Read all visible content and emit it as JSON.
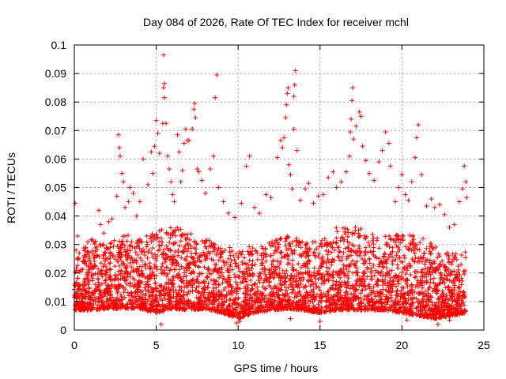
{
  "chart_data": {
    "type": "scatter",
    "title": "Day 084 of 2026, Rate Of TEC Index for receiver mchl",
    "xlabel": "GPS time / hours",
    "ylabel": "ROTI / TECUs",
    "xlim": [
      0,
      25
    ],
    "ylim": [
      0,
      0.1
    ],
    "x_ticks": [
      0,
      5,
      10,
      15,
      20,
      25
    ],
    "y_ticks": [
      0,
      0.01,
      0.02,
      0.03,
      0.04,
      0.05,
      0.06,
      0.07,
      0.08,
      0.09,
      0.1
    ],
    "x_tick_labels": [
      "0",
      "5",
      "10",
      "15",
      "20",
      "25"
    ],
    "y_tick_labels": [
      "0",
      "0.01",
      "0.02",
      "0.03",
      "0.04",
      "0.05",
      "0.06",
      "0.07",
      "0.08",
      "0.09",
      "0.1"
    ],
    "grid": true,
    "marker": "plus",
    "color": "#ff0000",
    "series": [
      {
        "points": [
          [
            0.05,
            0.0445
          ],
          [
            0.1,
            0.028
          ],
          [
            0.2,
            0.033
          ],
          [
            0.3,
            0.027
          ],
          [
            0.5,
            0.024
          ],
          [
            0.7,
            0.029
          ],
          [
            0.9,
            0.025
          ],
          [
            1.1,
            0.027
          ],
          [
            1.3,
            0.031
          ],
          [
            1.5,
            0.042
          ],
          [
            1.6,
            0.037
          ],
          [
            1.8,
            0.034
          ],
          [
            2.1,
            0.038
          ],
          [
            2.3,
            0.039
          ],
          [
            2.6,
            0.047
          ],
          [
            2.7,
            0.0685
          ],
          [
            2.75,
            0.064
          ],
          [
            2.8,
            0.061
          ],
          [
            2.9,
            0.055
          ],
          [
            3.0,
            0.052
          ],
          [
            3.1,
            0.043
          ],
          [
            3.3,
            0.045
          ],
          [
            3.4,
            0.05
          ],
          [
            3.6,
            0.048
          ],
          [
            3.8,
            0.04
          ],
          [
            4.0,
            0.045
          ],
          [
            4.2,
            0.06
          ],
          [
            4.5,
            0.051
          ],
          [
            4.7,
            0.0625
          ],
          [
            4.8,
            0.055
          ],
          [
            4.9,
            0.0645
          ],
          [
            5.0,
            0.0735
          ],
          [
            5.1,
            0.069
          ],
          [
            5.2,
            0.062
          ],
          [
            5.4,
            0.0725
          ],
          [
            5.45,
            0.085
          ],
          [
            5.5,
            0.0865
          ],
          [
            5.5,
            0.0815
          ],
          [
            5.45,
            0.0965
          ],
          [
            5.6,
            0.0725
          ],
          [
            5.7,
            0.061
          ],
          [
            5.8,
            0.0565
          ],
          [
            5.9,
            0.052
          ],
          [
            6.0,
            0.0475
          ],
          [
            6.1,
            0.045
          ],
          [
            6.3,
            0.0685
          ],
          [
            6.4,
            0.0625
          ],
          [
            6.5,
            0.052
          ],
          [
            6.6,
            0.056
          ],
          [
            6.7,
            0.0655
          ],
          [
            6.8,
            0.0705
          ],
          [
            6.9,
            0.0665
          ],
          [
            7.0,
            0.0665
          ],
          [
            7.2,
            0.0705
          ],
          [
            7.3,
            0.0775
          ],
          [
            7.35,
            0.0795
          ],
          [
            7.4,
            0.0745
          ],
          [
            7.5,
            0.0565
          ],
          [
            7.6,
            0.0555
          ],
          [
            7.8,
            0.0525
          ],
          [
            8.0,
            0.048
          ],
          [
            8.3,
            0.0565
          ],
          [
            8.5,
            0.061
          ],
          [
            8.6,
            0.0815
          ],
          [
            8.7,
            0.0895
          ],
          [
            8.8,
            0.05
          ],
          [
            9.1,
            0.045
          ],
          [
            9.4,
            0.041
          ],
          [
            9.8,
            0.0395
          ],
          [
            10.2,
            0.0445
          ],
          [
            10.5,
            0.0575
          ],
          [
            10.7,
            0.061
          ],
          [
            11.0,
            0.043
          ],
          [
            11.3,
            0.041
          ],
          [
            11.7,
            0.0475
          ],
          [
            12.0,
            0.0465
          ],
          [
            12.4,
            0.0605
          ],
          [
            12.6,
            0.0665
          ],
          [
            12.7,
            0.064
          ],
          [
            12.8,
            0.0675
          ],
          [
            12.9,
            0.0745
          ],
          [
            12.95,
            0.079
          ],
          [
            13.0,
            0.083
          ],
          [
            13.05,
            0.085
          ],
          [
            13.1,
            0.058
          ],
          [
            13.2,
            0.0545
          ],
          [
            13.3,
            0.0495
          ],
          [
            13.4,
            0.0705
          ],
          [
            13.4,
            0.082
          ],
          [
            13.45,
            0.086
          ],
          [
            13.5,
            0.091
          ],
          [
            13.6,
            0.063
          ],
          [
            13.8,
            0.0455
          ],
          [
            14.1,
            0.0495
          ],
          [
            14.3,
            0.0515
          ],
          [
            14.6,
            0.0445
          ],
          [
            14.9,
            0.047
          ],
          [
            15.2,
            0.0475
          ],
          [
            15.5,
            0.0535
          ],
          [
            15.8,
            0.0555
          ],
          [
            16.0,
            0.05
          ],
          [
            16.3,
            0.052
          ],
          [
            16.6,
            0.0555
          ],
          [
            16.8,
            0.061
          ],
          [
            16.85,
            0.0695
          ],
          [
            16.9,
            0.074
          ],
          [
            16.95,
            0.0805
          ],
          [
            17.0,
            0.085
          ],
          [
            17.05,
            0.067
          ],
          [
            17.2,
            0.0715
          ],
          [
            17.4,
            0.0765
          ],
          [
            17.5,
            0.075
          ],
          [
            17.6,
            0.0645
          ],
          [
            17.8,
            0.0595
          ],
          [
            18.0,
            0.055
          ],
          [
            18.3,
            0.0525
          ],
          [
            18.6,
            0.059
          ],
          [
            18.8,
            0.063
          ],
          [
            19.0,
            0.0695
          ],
          [
            19.2,
            0.0655
          ],
          [
            19.3,
            0.0575
          ],
          [
            19.6,
            0.045
          ],
          [
            19.8,
            0.05
          ],
          [
            20.0,
            0.0545
          ],
          [
            20.2,
            0.0475
          ],
          [
            20.4,
            0.0455
          ],
          [
            20.6,
            0.052
          ],
          [
            20.8,
            0.0605
          ],
          [
            20.9,
            0.0675
          ],
          [
            21.0,
            0.072
          ],
          [
            21.2,
            0.0545
          ],
          [
            21.5,
            0.0435
          ],
          [
            21.8,
            0.046
          ],
          [
            22.0,
            0.043
          ],
          [
            22.3,
            0.044
          ],
          [
            22.6,
            0.0405
          ],
          [
            22.9,
            0.036
          ],
          [
            23.2,
            0.037
          ],
          [
            23.5,
            0.045
          ],
          [
            23.7,
            0.0495
          ],
          [
            23.8,
            0.0575
          ],
          [
            23.9,
            0.052
          ],
          [
            23.95,
            0.0465
          ],
          [
            0.2,
            0.012
          ],
          [
            0.6,
            0.014
          ],
          [
            1.0,
            0.011
          ],
          [
            1.5,
            0.016
          ],
          [
            2.0,
            0.013
          ],
          [
            2.5,
            0.018
          ],
          [
            3.0,
            0.015
          ],
          [
            3.5,
            0.012
          ],
          [
            4.0,
            0.017
          ],
          [
            4.5,
            0.014
          ],
          [
            5.0,
            0.019
          ],
          [
            5.5,
            0.021
          ],
          [
            6.0,
            0.016
          ],
          [
            6.5,
            0.018
          ],
          [
            7.0,
            0.022
          ],
          [
            7.5,
            0.017
          ],
          [
            8.0,
            0.015
          ],
          [
            8.5,
            0.016
          ],
          [
            9.0,
            0.012
          ],
          [
            9.5,
            0.013
          ],
          [
            10.0,
            0.011
          ],
          [
            10.5,
            0.014
          ],
          [
            11.0,
            0.016
          ],
          [
            11.5,
            0.013
          ],
          [
            12.0,
            0.015
          ],
          [
            12.5,
            0.02
          ],
          [
            13.0,
            0.019
          ],
          [
            13.5,
            0.017
          ],
          [
            14.0,
            0.015
          ],
          [
            14.5,
            0.016
          ],
          [
            15.0,
            0.014
          ],
          [
            15.5,
            0.018
          ],
          [
            16.0,
            0.017
          ],
          [
            16.5,
            0.019
          ],
          [
            17.0,
            0.02
          ],
          [
            17.5,
            0.018
          ],
          [
            18.0,
            0.016
          ],
          [
            18.5,
            0.017
          ],
          [
            19.0,
            0.019
          ],
          [
            19.5,
            0.016
          ],
          [
            20.0,
            0.015
          ],
          [
            20.5,
            0.014
          ],
          [
            21.0,
            0.013
          ],
          [
            21.5,
            0.012
          ],
          [
            22.0,
            0.014
          ],
          [
            22.5,
            0.013
          ],
          [
            23.0,
            0.012
          ],
          [
            23.5,
            0.011
          ],
          [
            5.3,
            0.002
          ],
          [
            9.9,
            0.0025
          ],
          [
            10.1,
            0.003
          ],
          [
            13.2,
            0.004
          ],
          [
            15.0,
            0.003
          ],
          [
            20.3,
            0.0035
          ],
          [
            22.2,
            0.002
          ],
          [
            22.9,
            0.0035
          ]
        ]
      }
    ],
    "background_band": {
      "description": "dense cluster of many points forming solid band",
      "x": [
        0.0,
        1.0,
        2.0,
        3.0,
        4.0,
        5.0,
        6.0,
        7.0,
        8.0,
        9.0,
        10.0,
        11.0,
        12.0,
        13.0,
        14.0,
        15.0,
        16.0,
        17.0,
        18.0,
        19.0,
        20.0,
        21.0,
        22.0,
        23.0,
        23.9
      ],
      "lower": [
        0.007,
        0.007,
        0.0075,
        0.0075,
        0.0075,
        0.006,
        0.0075,
        0.007,
        0.0075,
        0.006,
        0.004,
        0.006,
        0.007,
        0.0075,
        0.007,
        0.006,
        0.007,
        0.007,
        0.007,
        0.007,
        0.006,
        0.005,
        0.004,
        0.005,
        0.006
      ],
      "upper": [
        0.026,
        0.032,
        0.031,
        0.034,
        0.032,
        0.035,
        0.037,
        0.034,
        0.032,
        0.03,
        0.028,
        0.03,
        0.031,
        0.033,
        0.032,
        0.031,
        0.036,
        0.037,
        0.034,
        0.033,
        0.034,
        0.033,
        0.03,
        0.027,
        0.028
      ]
    }
  }
}
